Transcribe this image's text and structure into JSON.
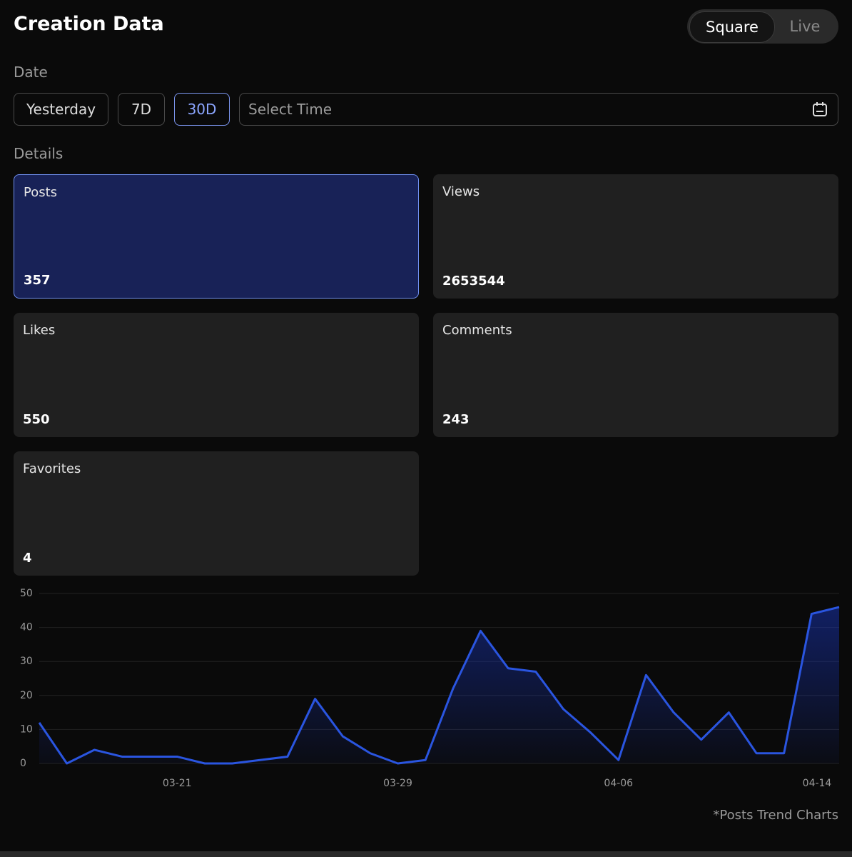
{
  "header": {
    "title": "Creation Data",
    "toggle": {
      "options": [
        "Square",
        "Live"
      ],
      "active_index": 0
    }
  },
  "date": {
    "label": "Date",
    "options": [
      "Yesterday",
      "7D",
      "30D"
    ],
    "selected_index": 2,
    "picker_placeholder": "Select Time"
  },
  "details": {
    "label": "Details",
    "selected_index": 0,
    "cards": [
      {
        "label": "Posts",
        "value": 357
      },
      {
        "label": "Views",
        "value": 2653544
      },
      {
        "label": "Likes",
        "value": 550
      },
      {
        "label": "Comments",
        "value": 243
      },
      {
        "label": "Favorites",
        "value": 4
      }
    ]
  },
  "chart_data": {
    "type": "line",
    "categories": [
      null,
      null,
      null,
      null,
      null,
      "03-21",
      null,
      null,
      null,
      null,
      null,
      null,
      null,
      "03-29",
      null,
      null,
      null,
      null,
      null,
      null,
      null,
      "04-06",
      null,
      null,
      null,
      null,
      null,
      null,
      null,
      "04-14"
    ],
    "series": [
      {
        "name": "Posts",
        "color": "#2a55e0",
        "values": [
          12,
          0,
          4,
          2,
          2,
          2,
          0,
          0,
          1,
          2,
          19,
          8,
          3,
          0,
          1,
          22,
          39,
          28,
          27,
          16,
          9,
          1,
          26,
          15,
          7,
          15,
          3,
          3,
          44,
          46
        ]
      }
    ],
    "ylim": [
      0,
      50
    ],
    "yticks": [
      0,
      10,
      20,
      30,
      40,
      50
    ],
    "grid": true
  },
  "footnote": "*Posts Trend Charts"
}
